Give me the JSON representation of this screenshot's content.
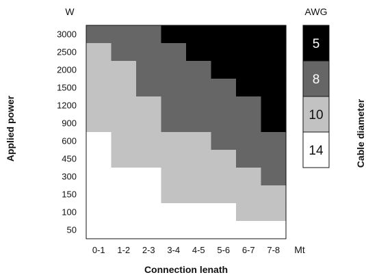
{
  "chart_data": {
    "type": "heatmap",
    "xlabel": "Connection lenath",
    "ylabel": "Applied power",
    "x_unit": "Mt",
    "y_unit": "W",
    "x_categories": [
      "0-1",
      "1-2",
      "2-3",
      "3-4",
      "4-5",
      "5-6",
      "6-7",
      "7-8"
    ],
    "y_categories": [
      "3000",
      "2500",
      "2000",
      "1500",
      "1200",
      "900",
      "600",
      "450",
      "300",
      "150",
      "100",
      "50"
    ],
    "legend_title": "AWG",
    "legend_side_label": "Cable diameter",
    "legend": [
      {
        "awg": "5",
        "color": "#000000",
        "text_color": "#ffffff"
      },
      {
        "awg": "8",
        "color": "#666666",
        "text_color": "#ffffff"
      },
      {
        "awg": "10",
        "color": "#c2c2c2",
        "text_color": "#111111"
      },
      {
        "awg": "14",
        "color": "#ffffff",
        "text_color": "#111111"
      }
    ],
    "grid": [
      [
        8,
        8,
        8,
        5,
        5,
        5,
        5,
        5
      ],
      [
        10,
        8,
        8,
        8,
        5,
        5,
        5,
        5
      ],
      [
        10,
        10,
        8,
        8,
        8,
        5,
        5,
        5
      ],
      [
        10,
        10,
        8,
        8,
        8,
        8,
        5,
        5
      ],
      [
        10,
        10,
        10,
        8,
        8,
        8,
        8,
        5
      ],
      [
        10,
        10,
        10,
        8,
        8,
        8,
        8,
        5
      ],
      [
        14,
        10,
        10,
        10,
        10,
        8,
        8,
        8
      ],
      [
        14,
        10,
        10,
        10,
        10,
        10,
        8,
        8
      ],
      [
        14,
        14,
        14,
        10,
        10,
        10,
        10,
        8
      ],
      [
        14,
        14,
        14,
        10,
        10,
        10,
        10,
        10
      ],
      [
        14,
        14,
        14,
        14,
        14,
        14,
        10,
        10
      ],
      [
        14,
        14,
        14,
        14,
        14,
        14,
        14,
        14
      ]
    ]
  }
}
